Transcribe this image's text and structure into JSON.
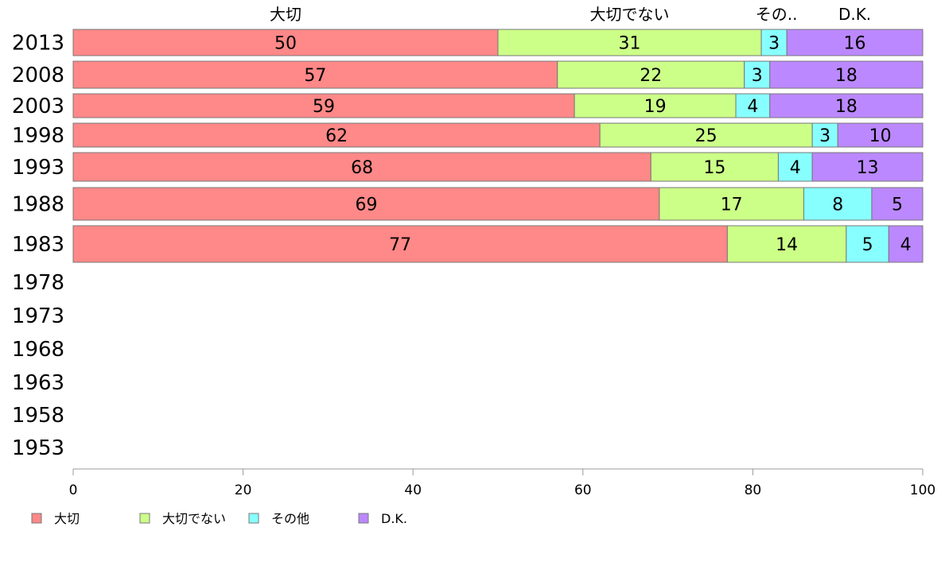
{
  "chart_data": {
    "type": "bar",
    "orientation": "horizontal",
    "stacked": true,
    "column_headers": [
      "大切",
      "大切でない",
      "その..",
      "D.K."
    ],
    "categories": [
      "2013",
      "2008",
      "2003",
      "1998",
      "1993",
      "1988",
      "1983",
      "1978",
      "1973",
      "1968",
      "1963",
      "1958",
      "1953"
    ],
    "series": [
      {
        "name": "大切",
        "color": "#ff8888",
        "values": [
          50,
          57,
          59,
          62,
          68,
          69,
          77,
          null,
          null,
          null,
          null,
          null,
          null
        ]
      },
      {
        "name": "大切でない",
        "color": "#ccff88",
        "values": [
          31,
          22,
          19,
          25,
          15,
          17,
          14,
          null,
          null,
          null,
          null,
          null,
          null
        ]
      },
      {
        "name": "その他",
        "color": "#88ffff",
        "values": [
          3,
          3,
          4,
          3,
          4,
          8,
          5,
          null,
          null,
          null,
          null,
          null,
          null
        ]
      },
      {
        "name": "D.K.",
        "color": "#bb88ff",
        "values": [
          16,
          18,
          18,
          10,
          13,
          5,
          4,
          null,
          null,
          null,
          null,
          null,
          null
        ]
      }
    ],
    "xlim": [
      0,
      100
    ],
    "xticks": [
      0,
      20,
      40,
      60,
      80,
      100
    ],
    "grid": false,
    "legend_position": "bottom-left"
  }
}
